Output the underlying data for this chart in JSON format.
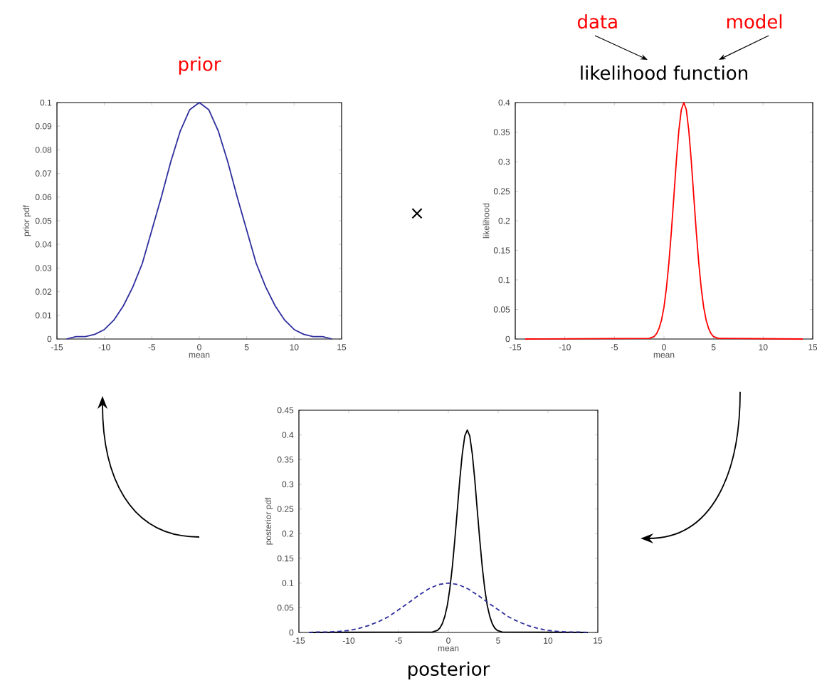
{
  "chart_data": [
    {
      "type": "line",
      "title": "prior",
      "xlabel": "mean",
      "ylabel": "prior pdf",
      "annotations": [
        "×"
      ],
      "xlim": [
        -15,
        15
      ],
      "xticks": [
        -15,
        -10,
        -5,
        0,
        5,
        10,
        15
      ],
      "ylim": [
        0,
        0.1
      ],
      "yticks": [
        0,
        0.01,
        0.02,
        0.03,
        0.04,
        0.05,
        0.06,
        0.07,
        0.08,
        0.09,
        0.1
      ],
      "series": [
        {
          "color": "#2e2e9e",
          "x": [
            -14,
            -13,
            -12,
            -11,
            -10,
            -9,
            -8,
            -7,
            -6,
            -5,
            -4,
            -3,
            -2,
            -1,
            0,
            1,
            2,
            3,
            4,
            5,
            6,
            7,
            8,
            9,
            10,
            11,
            12,
            13,
            14
          ],
          "values": [
            0,
            0.001,
            0.001,
            0.002,
            0.004,
            0.008,
            0.014,
            0.022,
            0.032,
            0.046,
            0.06,
            0.075,
            0.088,
            0.097,
            0.1,
            0.097,
            0.088,
            0.075,
            0.06,
            0.046,
            0.032,
            0.022,
            0.014,
            0.008,
            0.004,
            0.002,
            0.001,
            0.001,
            0
          ]
        }
      ]
    },
    {
      "type": "line",
      "title": "likelihood function",
      "xlabel": "mean",
      "ylabel": "likelihood",
      "annotations": [
        "data",
        "model"
      ],
      "xlim": [
        -15,
        15
      ],
      "xticks": [
        -15,
        -10,
        -5,
        0,
        5,
        10,
        15
      ],
      "ylim": [
        0,
        0.4
      ],
      "yticks": [
        0,
        0.05,
        0.1,
        0.15,
        0.2,
        0.25,
        0.3,
        0.35,
        0.4
      ],
      "series": [
        {
          "color": "#ff0000",
          "x": [
            -14,
            -1.5,
            -1,
            -0.75,
            -0.5,
            -0.25,
            0,
            0.25,
            0.5,
            0.75,
            1,
            1.25,
            1.5,
            1.75,
            2,
            2.25,
            2.5,
            2.75,
            3,
            3.25,
            3.5,
            3.75,
            4,
            4.25,
            4.5,
            4.75,
            5,
            5.5,
            14
          ],
          "values": [
            0,
            0.001,
            0.004,
            0.009,
            0.018,
            0.032,
            0.054,
            0.087,
            0.13,
            0.183,
            0.242,
            0.302,
            0.353,
            0.388,
            0.4,
            0.388,
            0.353,
            0.302,
            0.242,
            0.183,
            0.13,
            0.087,
            0.054,
            0.032,
            0.018,
            0.009,
            0.004,
            0.001,
            0
          ]
        }
      ]
    },
    {
      "type": "line",
      "title": "posterior",
      "xlabel": "mean",
      "ylabel": "posterior pdf",
      "xlim": [
        -15,
        15
      ],
      "xticks": [
        -15,
        -10,
        -5,
        0,
        5,
        10,
        15
      ],
      "ylim": [
        0,
        0.45
      ],
      "yticks": [
        0,
        0.05,
        0.1,
        0.15,
        0.2,
        0.25,
        0.3,
        0.35,
        0.4,
        0.45
      ],
      "series": [
        {
          "color": "#000000",
          "x": [
            -14,
            -1.6,
            -1.1,
            -0.85,
            -0.6,
            -0.35,
            -0.1,
            0.15,
            0.4,
            0.65,
            0.9,
            1.15,
            1.4,
            1.65,
            1.9,
            2.15,
            2.4,
            2.65,
            2.9,
            3.15,
            3.4,
            3.65,
            3.9,
            4.15,
            4.4,
            4.65,
            4.9,
            5.4,
            14
          ],
          "values": [
            0,
            0.001,
            0.004,
            0.009,
            0.018,
            0.033,
            0.055,
            0.089,
            0.133,
            0.188,
            0.248,
            0.31,
            0.362,
            0.398,
            0.41,
            0.398,
            0.362,
            0.31,
            0.248,
            0.188,
            0.133,
            0.089,
            0.055,
            0.033,
            0.018,
            0.009,
            0.004,
            0.001,
            0
          ]
        },
        {
          "color": "#2e2e9e",
          "line_style": "dashed",
          "x": [
            -14,
            -13,
            -12,
            -11,
            -10,
            -9,
            -8,
            -7,
            -6,
            -5,
            -4,
            -3,
            -2,
            -1,
            0,
            1,
            2,
            3,
            4,
            5,
            6,
            7,
            8,
            9,
            10,
            11,
            12,
            13,
            14
          ],
          "values": [
            0,
            0.001,
            0.001,
            0.002,
            0.004,
            0.008,
            0.014,
            0.022,
            0.032,
            0.046,
            0.06,
            0.075,
            0.088,
            0.097,
            0.1,
            0.097,
            0.088,
            0.075,
            0.06,
            0.046,
            0.032,
            0.022,
            0.014,
            0.008,
            0.004,
            0.002,
            0.001,
            0.001,
            0
          ]
        }
      ]
    }
  ]
}
